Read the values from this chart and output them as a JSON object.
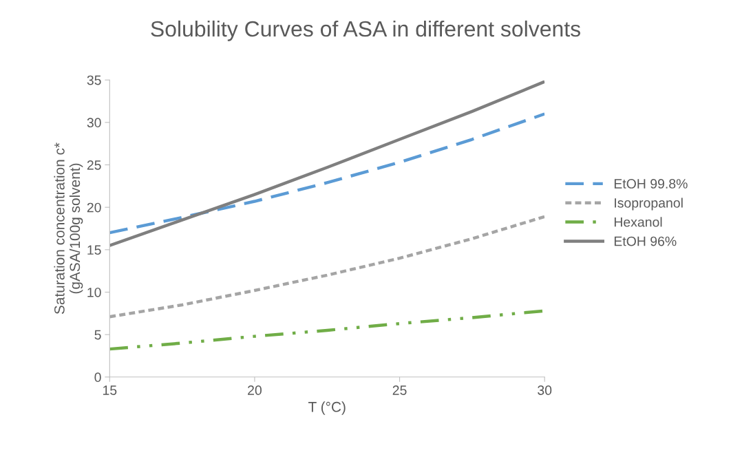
{
  "chart_data": {
    "type": "line",
    "title": "Solubility Curves of ASA in different solvents",
    "xlabel": "T (°C)",
    "ylabel": "Saturation concentration c*\n(gASA/100g solvent)",
    "xlim": [
      15,
      30
    ],
    "xticks": [
      15,
      20,
      25,
      30
    ],
    "ylim": [
      0,
      35
    ],
    "yticks": [
      0,
      5,
      10,
      15,
      20,
      25,
      30,
      35
    ],
    "grid": false,
    "legend": "right",
    "marker": "none",
    "x": [
      15,
      17.5,
      20,
      22.5,
      25,
      27.5,
      30
    ],
    "series": [
      {
        "name": "EtOH 99.8%",
        "color": "#5b9bd5",
        "line_style": "dashed",
        "values": [
          17.0,
          18.8,
          20.7,
          22.9,
          25.3,
          28.0,
          31.0
        ]
      },
      {
        "name": "Isopropanol",
        "color": "#a5a5a5",
        "line_style": "dotted",
        "values": [
          7.1,
          8.5,
          10.2,
          12.0,
          14.0,
          16.3,
          18.9
        ]
      },
      {
        "name": "Hexanol",
        "color": "#70ad47",
        "line_style": "dashdotdot",
        "values": [
          3.3,
          4.0,
          4.8,
          5.5,
          6.3,
          7.0,
          7.8
        ]
      },
      {
        "name": "EtOH 96%",
        "color": "#7f7f7f",
        "line_style": "solid",
        "values": [
          15.5,
          18.5,
          21.5,
          24.7,
          28.0,
          31.3,
          34.8
        ]
      }
    ]
  }
}
